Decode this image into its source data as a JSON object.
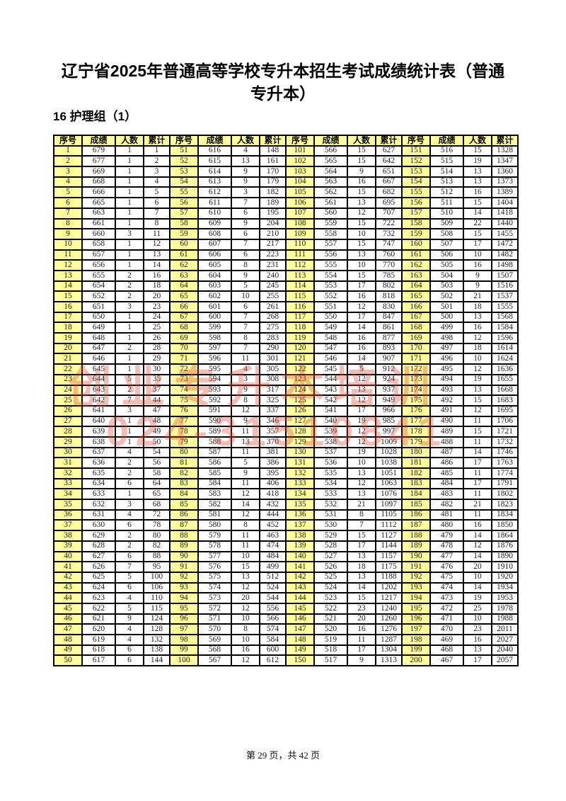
{
  "doc": {
    "title": "辽宁省2025年普通高等学校专升本招生考试成绩统计表（普通专升本）",
    "subtitle": "16 护理组（1）",
    "footer": "第 29 页，共 42 页"
  },
  "watermark": {
    "line1": "创业专升本培训",
    "line2": "024-31510841"
  },
  "colors": {
    "header_bg": "#FFFF99",
    "border": "#000000",
    "watermark": "#E0503C"
  },
  "table": {
    "headers": [
      "序号",
      "成绩",
      "人数",
      "累计"
    ],
    "groups": [
      [
        [
          1,
          679,
          1,
          1
        ],
        [
          2,
          677,
          1,
          2
        ],
        [
          3,
          669,
          1,
          3
        ],
        [
          4,
          668,
          1,
          4
        ],
        [
          5,
          666,
          1,
          5
        ],
        [
          6,
          665,
          1,
          6
        ],
        [
          7,
          663,
          1,
          7
        ],
        [
          8,
          661,
          1,
          8
        ],
        [
          9,
          660,
          3,
          11
        ],
        [
          10,
          658,
          1,
          12
        ],
        [
          11,
          657,
          1,
          13
        ],
        [
          12,
          656,
          1,
          14
        ],
        [
          13,
          655,
          2,
          16
        ],
        [
          14,
          654,
          2,
          18
        ],
        [
          15,
          652,
          2,
          20
        ],
        [
          16,
          651,
          3,
          23
        ],
        [
          17,
          650,
          1,
          24
        ],
        [
          18,
          649,
          1,
          25
        ],
        [
          19,
          648,
          1,
          26
        ],
        [
          20,
          647,
          2,
          28
        ],
        [
          21,
          646,
          1,
          29
        ],
        [
          22,
          645,
          1,
          30
        ],
        [
          23,
          644,
          5,
          35
        ],
        [
          24,
          643,
          2,
          37
        ],
        [
          25,
          642,
          7,
          44
        ],
        [
          26,
          641,
          3,
          47
        ],
        [
          27,
          640,
          1,
          48
        ],
        [
          28,
          639,
          1,
          49
        ],
        [
          29,
          638,
          1,
          50
        ],
        [
          30,
          637,
          4,
          54
        ],
        [
          31,
          636,
          2,
          56
        ],
        [
          32,
          635,
          2,
          58
        ],
        [
          33,
          634,
          6,
          64
        ],
        [
          34,
          633,
          1,
          65
        ],
        [
          35,
          632,
          3,
          68
        ],
        [
          36,
          631,
          4,
          72
        ],
        [
          37,
          630,
          6,
          78
        ],
        [
          38,
          629,
          2,
          80
        ],
        [
          39,
          628,
          2,
          82
        ],
        [
          40,
          627,
          6,
          88
        ],
        [
          41,
          626,
          7,
          95
        ],
        [
          42,
          625,
          5,
          100
        ],
        [
          43,
          624,
          6,
          106
        ],
        [
          44,
          623,
          4,
          110
        ],
        [
          45,
          622,
          5,
          115
        ],
        [
          46,
          621,
          9,
          124
        ],
        [
          47,
          620,
          4,
          128
        ],
        [
          48,
          619,
          4,
          132
        ],
        [
          49,
          618,
          6,
          138
        ],
        [
          50,
          617,
          6,
          144
        ]
      ],
      [
        [
          51,
          616,
          4,
          148
        ],
        [
          52,
          615,
          13,
          161
        ],
        [
          53,
          614,
          9,
          170
        ],
        [
          54,
          613,
          9,
          179
        ],
        [
          55,
          612,
          3,
          182
        ],
        [
          56,
          611,
          7,
          189
        ],
        [
          57,
          610,
          6,
          195
        ],
        [
          58,
          609,
          9,
          204
        ],
        [
          59,
          608,
          6,
          210
        ],
        [
          60,
          607,
          7,
          217
        ],
        [
          61,
          606,
          6,
          223
        ],
        [
          62,
          605,
          8,
          231
        ],
        [
          63,
          604,
          9,
          240
        ],
        [
          64,
          603,
          5,
          245
        ],
        [
          65,
          602,
          10,
          255
        ],
        [
          66,
          601,
          6,
          261
        ],
        [
          67,
          600,
          7,
          268
        ],
        [
          68,
          599,
          7,
          275
        ],
        [
          69,
          598,
          8,
          283
        ],
        [
          70,
          597,
          7,
          290
        ],
        [
          71,
          596,
          11,
          301
        ],
        [
          72,
          595,
          4,
          305
        ],
        [
          73,
          594,
          3,
          308
        ],
        [
          74,
          593,
          9,
          317
        ],
        [
          75,
          592,
          8,
          325
        ],
        [
          76,
          591,
          12,
          337
        ],
        [
          77,
          590,
          9,
          346
        ],
        [
          78,
          589,
          11,
          357
        ],
        [
          79,
          588,
          13,
          370
        ],
        [
          80,
          587,
          11,
          381
        ],
        [
          81,
          586,
          5,
          386
        ],
        [
          82,
          585,
          9,
          395
        ],
        [
          83,
          584,
          11,
          406
        ],
        [
          84,
          583,
          12,
          418
        ],
        [
          85,
          582,
          14,
          432
        ],
        [
          86,
          581,
          12,
          444
        ],
        [
          87,
          580,
          8,
          452
        ],
        [
          88,
          579,
          11,
          463
        ],
        [
          89,
          578,
          11,
          474
        ],
        [
          90,
          577,
          10,
          484
        ],
        [
          91,
          576,
          15,
          499
        ],
        [
          92,
          575,
          13,
          512
        ],
        [
          93,
          574,
          12,
          524
        ],
        [
          94,
          573,
          20,
          544
        ],
        [
          95,
          572,
          12,
          556
        ],
        [
          96,
          571,
          10,
          566
        ],
        [
          97,
          570,
          8,
          574
        ],
        [
          98,
          569,
          10,
          584
        ],
        [
          99,
          568,
          16,
          600
        ],
        [
          100,
          567,
          12,
          612
        ]
      ],
      [
        [
          101,
          566,
          15,
          627
        ],
        [
          102,
          565,
          15,
          642
        ],
        [
          103,
          564,
          9,
          651
        ],
        [
          104,
          563,
          16,
          667
        ],
        [
          105,
          562,
          15,
          682
        ],
        [
          106,
          561,
          13,
          695
        ],
        [
          107,
          560,
          12,
          707
        ],
        [
          108,
          559,
          15,
          722
        ],
        [
          109,
          558,
          10,
          732
        ],
        [
          110,
          557,
          15,
          747
        ],
        [
          111,
          556,
          13,
          760
        ],
        [
          112,
          555,
          10,
          770
        ],
        [
          113,
          554,
          15,
          785
        ],
        [
          114,
          553,
          17,
          802
        ],
        [
          115,
          552,
          16,
          818
        ],
        [
          116,
          551,
          12,
          830
        ],
        [
          117,
          550,
          17,
          847
        ],
        [
          118,
          549,
          14,
          861
        ],
        [
          119,
          548,
          16,
          877
        ],
        [
          120,
          547,
          16,
          893
        ],
        [
          121,
          546,
          14,
          907
        ],
        [
          122,
          545,
          5,
          912
        ],
        [
          123,
          544,
          12,
          924
        ],
        [
          124,
          543,
          13,
          937
        ],
        [
          125,
          542,
          12,
          949
        ],
        [
          126,
          541,
          17,
          966
        ],
        [
          127,
          540,
          19,
          985
        ],
        [
          128,
          539,
          12,
          997
        ],
        [
          129,
          538,
          12,
          1009
        ],
        [
          130,
          537,
          19,
          1028
        ],
        [
          131,
          536,
          10,
          1038
        ],
        [
          132,
          535,
          13,
          1051
        ],
        [
          133,
          534,
          12,
          1063
        ],
        [
          134,
          533,
          13,
          1076
        ],
        [
          135,
          532,
          21,
          1097
        ],
        [
          136,
          531,
          8,
          1105
        ],
        [
          137,
          530,
          7,
          1112
        ],
        [
          138,
          529,
          15,
          1127
        ],
        [
          139,
          528,
          17,
          1144
        ],
        [
          140,
          527,
          13,
          1157
        ],
        [
          141,
          526,
          18,
          1175
        ],
        [
          142,
          525,
          13,
          1188
        ],
        [
          143,
          524,
          14,
          1202
        ],
        [
          144,
          523,
          15,
          1217
        ],
        [
          145,
          522,
          23,
          1240
        ],
        [
          146,
          521,
          20,
          1260
        ],
        [
          147,
          520,
          16,
          1276
        ],
        [
          148,
          519,
          11,
          1287
        ],
        [
          149,
          518,
          17,
          1304
        ],
        [
          150,
          517,
          9,
          1313
        ]
      ],
      [
        [
          151,
          516,
          15,
          1328
        ],
        [
          152,
          515,
          19,
          1347
        ],
        [
          153,
          514,
          13,
          1360
        ],
        [
          154,
          513,
          13,
          1373
        ],
        [
          155,
          512,
          16,
          1389
        ],
        [
          156,
          511,
          15,
          1404
        ],
        [
          157,
          510,
          14,
          1418
        ],
        [
          158,
          509,
          22,
          1440
        ],
        [
          159,
          508,
          15,
          1455
        ],
        [
          160,
          507,
          17,
          1472
        ],
        [
          161,
          506,
          10,
          1482
        ],
        [
          162,
          505,
          16,
          1498
        ],
        [
          163,
          504,
          9,
          1507
        ],
        [
          164,
          503,
          9,
          1516
        ],
        [
          165,
          502,
          21,
          1537
        ],
        [
          166,
          501,
          18,
          1555
        ],
        [
          167,
          500,
          13,
          1568
        ],
        [
          168,
          499,
          16,
          1584
        ],
        [
          169,
          498,
          12,
          1596
        ],
        [
          170,
          497,
          18,
          1614
        ],
        [
          171,
          496,
          10,
          1624
        ],
        [
          172,
          495,
          12,
          1636
        ],
        [
          173,
          494,
          19,
          1655
        ],
        [
          174,
          493,
          13,
          1668
        ],
        [
          175,
          492,
          15,
          1683
        ],
        [
          176,
          491,
          12,
          1695
        ],
        [
          177,
          490,
          11,
          1706
        ],
        [
          178,
          489,
          15,
          1721
        ],
        [
          179,
          488,
          11,
          1732
        ],
        [
          180,
          487,
          14,
          1746
        ],
        [
          181,
          486,
          17,
          1763
        ],
        [
          182,
          485,
          11,
          1774
        ],
        [
          183,
          484,
          17,
          1791
        ],
        [
          184,
          483,
          11,
          1802
        ],
        [
          185,
          482,
          21,
          1823
        ],
        [
          186,
          481,
          11,
          1834
        ],
        [
          187,
          480,
          16,
          1850
        ],
        [
          188,
          479,
          14,
          1864
        ],
        [
          189,
          478,
          12,
          1876
        ],
        [
          190,
          477,
          14,
          1890
        ],
        [
          191,
          476,
          20,
          1910
        ],
        [
          192,
          475,
          10,
          1920
        ],
        [
          193,
          474,
          14,
          1934
        ],
        [
          194,
          473,
          19,
          1953
        ],
        [
          195,
          472,
          25,
          1978
        ],
        [
          196,
          471,
          10,
          1988
        ],
        [
          197,
          470,
          23,
          2011
        ],
        [
          198,
          469,
          16,
          2027
        ],
        [
          199,
          468,
          13,
          2040
        ],
        [
          200,
          467,
          17,
          2057
        ]
      ]
    ]
  }
}
